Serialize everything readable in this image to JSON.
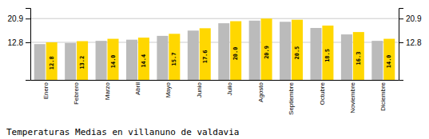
{
  "chart_data": {
    "type": "bar",
    "title": "Temperaturas Medias en villanuno de valdavia",
    "categories": [
      "Enero",
      "Febrero",
      "Marzo",
      "Abril",
      "Mayo",
      "Junio",
      "Julio",
      "Agosto",
      "Septiembre",
      "Octubre",
      "Noviembre",
      "Diciembre"
    ],
    "series": [
      {
        "color": "#BBBBBB",
        "values": [
          12.2,
          12.6,
          13.3,
          13.7,
          15.0,
          16.8,
          19.3,
          20.2,
          19.8,
          17.7,
          15.5,
          13.3
        ]
      },
      {
        "color": "#FFD700",
        "values": [
          12.8,
          13.2,
          14.0,
          14.4,
          15.7,
          17.6,
          20.0,
          20.9,
          20.5,
          18.5,
          16.3,
          14.0
        ],
        "value_labels": [
          "12.8",
          "13.2",
          "14.0",
          "14.4",
          "15.7",
          "17.6",
          "20.0",
          "20.9",
          "20.5",
          "18.5",
          "16.3",
          "14.0"
        ]
      }
    ],
    "ylim": [
      0,
      24.5
    ],
    "yticks": [
      12.8,
      20.9
    ],
    "y2lim": [
      0,
      24.5
    ],
    "y2ticks": [
      12.8,
      20.9
    ],
    "grid": true
  }
}
